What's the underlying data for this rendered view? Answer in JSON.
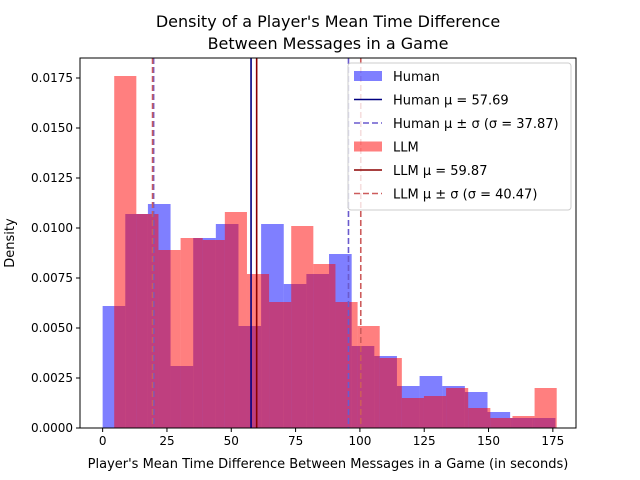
{
  "chart_data": {
    "type": "histogram",
    "title_line1": "Density of a Player's Mean Time Difference",
    "title_line2": "Between Messages in a Game",
    "xlabel": "Player's Mean Time Difference Between Messages in a Game (in seconds)",
    "ylabel": "Density",
    "xlim": [
      -8.8,
      184.0
    ],
    "ylim": [
      0,
      0.0185
    ],
    "xticks": [
      0,
      25,
      50,
      75,
      100,
      125,
      150,
      175
    ],
    "xtick_labels": [
      "0",
      "25",
      "50",
      "75",
      "100",
      "125",
      "150",
      "175"
    ],
    "yticks": [
      0,
      0.0025,
      0.005,
      0.0075,
      0.01,
      0.0125,
      0.015,
      0.0175
    ],
    "ytick_labels": [
      "0.0000",
      "0.0025",
      "0.0050",
      "0.0075",
      "0.0100",
      "0.0125",
      "0.0150",
      "0.0175"
    ],
    "grid": false,
    "legend_position": "upper right",
    "series": [
      {
        "name": "Human",
        "color": "#0000ff",
        "alpha": 0.5,
        "bin_edges": [
          0,
          8.8,
          17.6,
          26.4,
          35.2,
          44.0,
          52.8,
          61.6,
          70.4,
          79.2,
          88.0,
          96.8,
          105.6,
          114.4,
          123.2,
          132.0,
          140.8,
          149.6,
          158.4,
          167.2,
          176.0
        ],
        "values": [
          0.0061,
          0.0107,
          0.0112,
          0.0031,
          0.0095,
          0.0102,
          0.0051,
          0.0102,
          0.0072,
          0.0077,
          0.0087,
          0.0041,
          0.0036,
          0.0021,
          0.0026,
          0.0021,
          0.0018,
          0.0008,
          0.0005,
          0.0005
        ]
      },
      {
        "name": "LLM",
        "color": "#ff0000",
        "alpha": 0.5,
        "bin_edges": [
          4.5,
          13.1,
          21.7,
          30.3,
          38.9,
          47.5,
          56.1,
          64.7,
          73.3,
          81.9,
          90.5,
          99.1,
          107.7,
          116.3,
          124.9,
          133.5,
          142.1,
          150.7,
          159.3,
          167.9,
          176.5
        ],
        "values": [
          0.0176,
          0.0107,
          0.0089,
          0.0095,
          0.0094,
          0.0108,
          0.0077,
          0.0063,
          0.0101,
          0.0082,
          0.0063,
          0.0051,
          0.0035,
          0.0015,
          0.0016,
          0.002,
          0.001,
          0.0005,
          0.0006,
          0.002
        ]
      }
    ],
    "reference_lines": [
      {
        "name": "human-mean",
        "x": 57.69,
        "color": "#000080",
        "style": "solid"
      },
      {
        "name": "human-mean-minus-sd",
        "x": 19.82,
        "color": "#6a5acd",
        "style": "dashed"
      },
      {
        "name": "human-mean-plus-sd",
        "x": 95.56,
        "color": "#6a5acd",
        "style": "dashed"
      },
      {
        "name": "llm-mean",
        "x": 59.87,
        "color": "#8b0000",
        "style": "solid"
      },
      {
        "name": "llm-mean-minus-sd",
        "x": 19.4,
        "color": "#cd5c5c",
        "style": "dashed"
      },
      {
        "name": "llm-mean-plus-sd",
        "x": 100.34,
        "color": "#cd5c5c",
        "style": "dashed"
      }
    ],
    "legend": [
      {
        "kind": "patch",
        "color": "#0000ff",
        "alpha": 0.5,
        "text": "Human"
      },
      {
        "kind": "line",
        "color": "#000080",
        "dash": false,
        "text": "Human μ = 57.69"
      },
      {
        "kind": "line",
        "color": "#6a5acd",
        "dash": true,
        "text": "Human μ ± σ (σ = 37.87)"
      },
      {
        "kind": "patch",
        "color": "#ff0000",
        "alpha": 0.5,
        "text": "LLM"
      },
      {
        "kind": "line",
        "color": "#8b0000",
        "dash": false,
        "text": "LLM μ = 59.87"
      },
      {
        "kind": "line",
        "color": "#cd5c5c",
        "dash": true,
        "text": "LLM μ ± σ (σ = 40.47)"
      }
    ]
  }
}
